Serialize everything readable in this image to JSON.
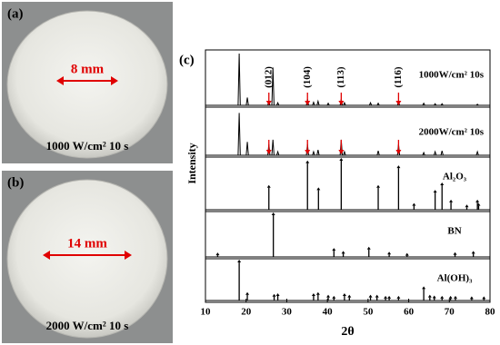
{
  "photos": [
    {
      "label": "(a)",
      "size": "8 mm",
      "caption": "1000 W/cm² 10 s"
    },
    {
      "label": "(b)",
      "size": "14 mm",
      "caption": "2000 W/cm² 10 s"
    }
  ],
  "chart_data": {
    "type": "spectrum",
    "panel": "(c)",
    "xlabel": "2θ",
    "ylabel": "Intensity",
    "xlim": [
      10,
      80
    ],
    "xticks": [
      10,
      20,
      30,
      40,
      50,
      60,
      70,
      80
    ],
    "ylim": [
      0,
      100
    ],
    "annotations": [
      {
        "text": "(012)",
        "x": 25.6
      },
      {
        "text": "(104)",
        "x": 35.1
      },
      {
        "text": "(113)",
        "x": 43.4
      },
      {
        "text": "(116)",
        "x": 57.5
      }
    ],
    "arrow_color": "#e00000",
    "series": [
      {
        "name": "1000W/cm² 10s",
        "style": "line",
        "color": "#000000",
        "x": [
          18.3,
          20.3,
          25.6,
          26.6,
          27.8,
          35.1,
          36.6,
          37.7,
          40.2,
          43.4,
          44.2,
          50.6,
          52.5,
          57.5,
          63.7,
          66.5,
          68.2,
          76.9
        ],
        "values": [
          100,
          15,
          8,
          73,
          5,
          12,
          6,
          8,
          4,
          12,
          5,
          5,
          4,
          7,
          4,
          3,
          3,
          2
        ]
      },
      {
        "name": "2000W/cm² 10s",
        "style": "line",
        "color": "#000000",
        "x": [
          18.3,
          20.3,
          25.6,
          26.6,
          27.8,
          35.1,
          36.6,
          37.7,
          43.4,
          44.2,
          52.5,
          57.5,
          63.7,
          66.5,
          68.2,
          76.9
        ],
        "values": [
          95,
          30,
          25,
          35,
          8,
          25,
          8,
          12,
          35,
          8,
          10,
          25,
          6,
          8,
          10,
          8
        ]
      },
      {
        "name": "Al₂O₃",
        "style": "sticks",
        "color": "#000000",
        "x": [
          25.6,
          35.1,
          37.8,
          43.4,
          52.5,
          57.5,
          61.3,
          66.5,
          68.2,
          70.4,
          74.3,
          76.9,
          77.2
        ],
        "values": [
          45,
          95,
          40,
          100,
          45,
          85,
          8,
          35,
          50,
          15,
          5,
          15,
          8
        ]
      },
      {
        "name": "BN",
        "style": "sticks",
        "color": "#000000",
        "x": [
          13,
          26.7,
          41.6,
          43.9,
          50.2,
          55.2,
          59.6,
          71.4,
          75.9
        ],
        "values": [
          4,
          100,
          15,
          8,
          18,
          6,
          3,
          5,
          8
        ]
      },
      {
        "name": "Al(OH)₃",
        "style": "sticks",
        "color": "#000000",
        "x": [
          18.3,
          20.3,
          26.9,
          27.8,
          36.6,
          37.7,
          40.2,
          41.6,
          44.2,
          45.4,
          50.6,
          52.2,
          54.3,
          55.2,
          57.5,
          63.7,
          65.2,
          66.3,
          68.2,
          70.3,
          71.5,
          75.5,
          78.5
        ],
        "values": [
          100,
          15,
          10,
          12,
          12,
          15,
          8,
          5,
          12,
          8,
          8,
          8,
          5,
          5,
          5,
          30,
          8,
          6,
          5,
          5,
          5,
          4,
          4
        ]
      }
    ]
  }
}
